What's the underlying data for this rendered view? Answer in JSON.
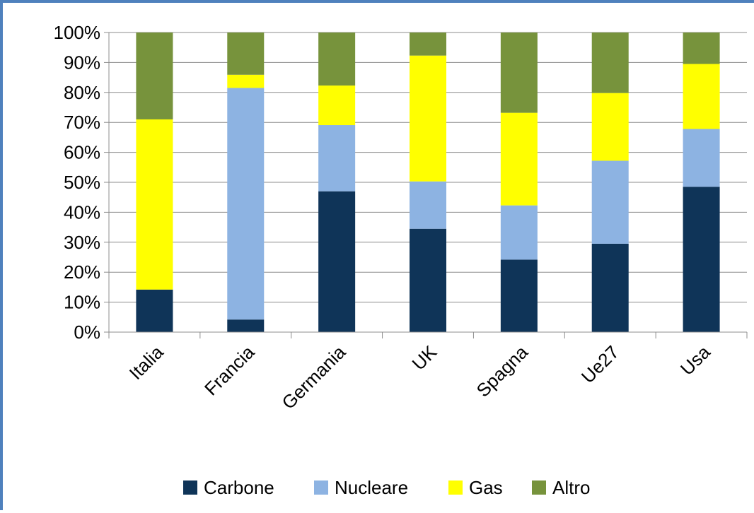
{
  "chart_data": {
    "type": "bar",
    "stacked": true,
    "categories": [
      "Italia",
      "Francia",
      "Germania",
      "UK",
      "Spagna",
      "Ue27",
      "Usa"
    ],
    "series": [
      {
        "name": "Carbone",
        "color": "#0F3458",
        "values": [
          14.2,
          4.2,
          47.0,
          34.5,
          24.2,
          29.5,
          48.5
        ]
      },
      {
        "name": "Nucleare",
        "color": "#8DB3E2",
        "values": [
          0.0,
          77.3,
          22.1,
          15.8,
          18.1,
          27.7,
          19.3
        ]
      },
      {
        "name": "Gas",
        "color": "#FFFF00",
        "values": [
          56.8,
          4.4,
          13.2,
          42.0,
          30.9,
          22.6,
          21.7
        ]
      },
      {
        "name": "Altro",
        "color": "#77933C",
        "values": [
          29.0,
          14.1,
          17.7,
          7.7,
          26.8,
          20.2,
          10.5
        ]
      }
    ],
    "ylim": [
      0,
      100
    ],
    "yticks": [
      "0%",
      "10%",
      "20%",
      "30%",
      "40%",
      "50%",
      "60%",
      "70%",
      "80%",
      "90%",
      "100%"
    ],
    "grid": true,
    "legend": "bottom",
    "title": "",
    "xlabel": "",
    "ylabel": ""
  }
}
